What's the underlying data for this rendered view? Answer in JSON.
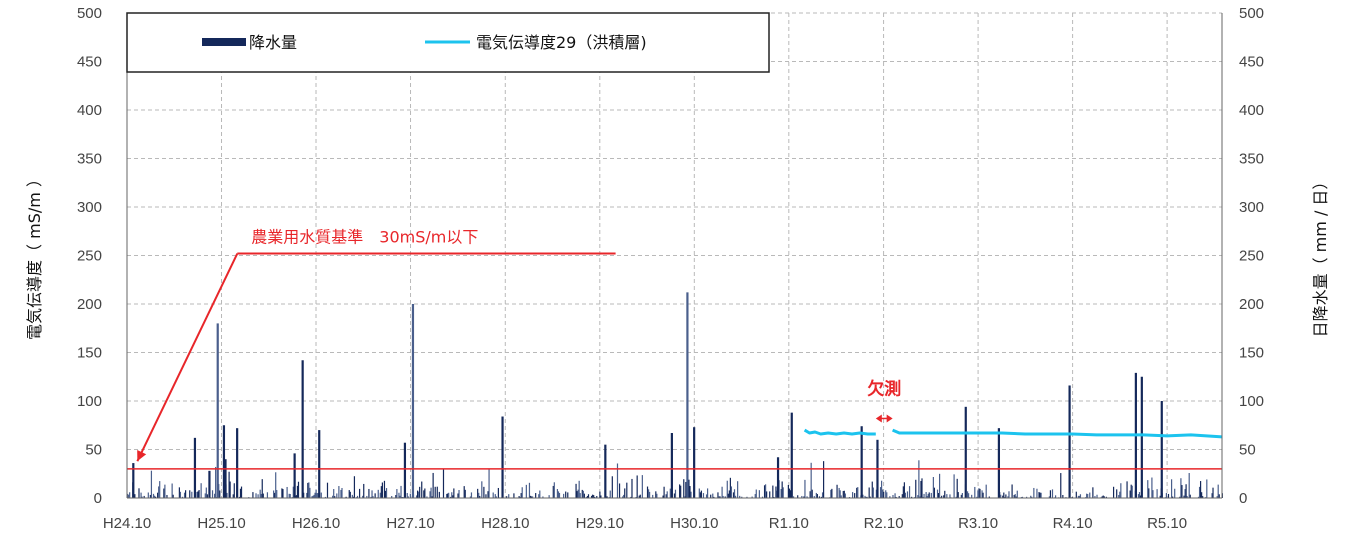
{
  "chart_data": {
    "type": "bar",
    "title": "",
    "y_left_label": "電気伝導度（ mS/m ）",
    "y_right_label": "日降水量（ mm / 日）",
    "y_left_range": [
      0,
      500
    ],
    "y_right_range": [
      0,
      500
    ],
    "y_ticks": [
      "0",
      "50",
      "100",
      "150",
      "200",
      "250",
      "300",
      "350",
      "400",
      "450",
      "500"
    ],
    "x_range": [
      "2012-10-01",
      "2024-04-30"
    ],
    "x_ticks": [
      {
        "label": "H24.10",
        "date": "2012-10-01"
      },
      {
        "label": "H25.10",
        "date": "2013-10-01"
      },
      {
        "label": "H26.10",
        "date": "2014-10-01"
      },
      {
        "label": "H27.10",
        "date": "2015-10-01"
      },
      {
        "label": "H28.10",
        "date": "2016-10-01"
      },
      {
        "label": "H29.10",
        "date": "2017-10-01"
      },
      {
        "label": "H30.10",
        "date": "2018-10-01"
      },
      {
        "label": "R1.10",
        "date": "2019-10-01"
      },
      {
        "label": "R2.10",
        "date": "2020-10-01"
      },
      {
        "label": "R3.10",
        "date": "2021-10-01"
      },
      {
        "label": "R4.10",
        "date": "2022-10-01"
      },
      {
        "label": "R5.10",
        "date": "2023-10-01"
      }
    ],
    "grid": true,
    "legend_position": "top-left",
    "series": [
      {
        "name": "降水量",
        "type": "bar",
        "color": "#14285a",
        "note_peaks_only": "major daily rainfall spikes (mm/day); small daily values not individually recoverable",
        "peaks": [
          {
            "x": "2012-10-25",
            "y": 36
          },
          {
            "x": "2013-06-20",
            "y": 62
          },
          {
            "x": "2013-08-15",
            "y": 28
          },
          {
            "x": "2013-09-16",
            "y": 180
          },
          {
            "x": "2013-10-10",
            "y": 75
          },
          {
            "x": "2013-10-16",
            "y": 40
          },
          {
            "x": "2013-11-30",
            "y": 72
          },
          {
            "x": "2014-07-10",
            "y": 46
          },
          {
            "x": "2014-08-10",
            "y": 142
          },
          {
            "x": "2014-10-13",
            "y": 70
          },
          {
            "x": "2015-09-09",
            "y": 57
          },
          {
            "x": "2015-10-10",
            "y": 200
          },
          {
            "x": "2016-09-20",
            "y": 84
          },
          {
            "x": "2017-10-22",
            "y": 55
          },
          {
            "x": "2018-07-06",
            "y": 67
          },
          {
            "x": "2018-09-04",
            "y": 212
          },
          {
            "x": "2018-09-30",
            "y": 73
          },
          {
            "x": "2019-08-20",
            "y": 42
          },
          {
            "x": "2019-10-12",
            "y": 88
          },
          {
            "x": "2020-07-08",
            "y": 74
          },
          {
            "x": "2020-09-07",
            "y": 60
          },
          {
            "x": "2021-08-14",
            "y": 94
          },
          {
            "x": "2021-12-20",
            "y": 72
          },
          {
            "x": "2022-09-19",
            "y": 116
          },
          {
            "x": "2023-06-02",
            "y": 129
          },
          {
            "x": "2023-06-25",
            "y": 125
          },
          {
            "x": "2023-09-10",
            "y": 100
          }
        ]
      },
      {
        "name": "電気伝導度29（洪積層)",
        "type": "line",
        "color": "#1cc3ee",
        "segments": [
          [
            {
              "x": "2019-12-01",
              "y": 70
            },
            {
              "x": "2019-12-20",
              "y": 67
            },
            {
              "x": "2020-01-10",
              "y": 68
            },
            {
              "x": "2020-02-01",
              "y": 66
            },
            {
              "x": "2020-03-01",
              "y": 67
            },
            {
              "x": "2020-04-01",
              "y": 66
            },
            {
              "x": "2020-05-01",
              "y": 67
            },
            {
              "x": "2020-06-01",
              "y": 66
            },
            {
              "x": "2020-07-01",
              "y": 67
            },
            {
              "x": "2020-08-01",
              "y": 66
            },
            {
              "x": "2020-09-01",
              "y": 66
            }
          ],
          [
            {
              "x": "2020-11-05",
              "y": 70
            },
            {
              "x": "2020-12-01",
              "y": 67
            },
            {
              "x": "2021-03-01",
              "y": 67
            },
            {
              "x": "2021-06-01",
              "y": 67
            },
            {
              "x": "2021-10-01",
              "y": 67
            },
            {
              "x": "2022-01-01",
              "y": 67
            },
            {
              "x": "2022-04-01",
              "y": 66
            },
            {
              "x": "2022-07-01",
              "y": 66
            },
            {
              "x": "2022-10-01",
              "y": 66
            },
            {
              "x": "2023-01-01",
              "y": 65
            },
            {
              "x": "2023-04-01",
              "y": 65
            },
            {
              "x": "2023-07-01",
              "y": 65
            },
            {
              "x": "2023-10-01",
              "y": 64
            },
            {
              "x": "2024-01-01",
              "y": 65
            },
            {
              "x": "2024-04-30",
              "y": 63
            }
          ]
        ]
      }
    ],
    "reference_line": {
      "y": 30,
      "color": "#e8262a"
    },
    "annotations": {
      "standard_label": "農業用水質基準　30mS/m以下",
      "standard_line_y": 252,
      "standard_line_x": [
        "2013-12-01",
        "2017-12-01"
      ],
      "standard_arrow_to": {
        "x": "2012-11-10",
        "y": 38
      },
      "missing_label": "欠測",
      "missing_span": [
        "2020-09-01",
        "2020-11-05"
      ],
      "missing_arrow_y": 82
    },
    "legend": [
      {
        "label": "降水量",
        "kind": "bar",
        "color": "#14285a"
      },
      {
        "label": "電気伝導度29（洪積層)",
        "kind": "line",
        "color": "#1cc3ee"
      }
    ]
  }
}
